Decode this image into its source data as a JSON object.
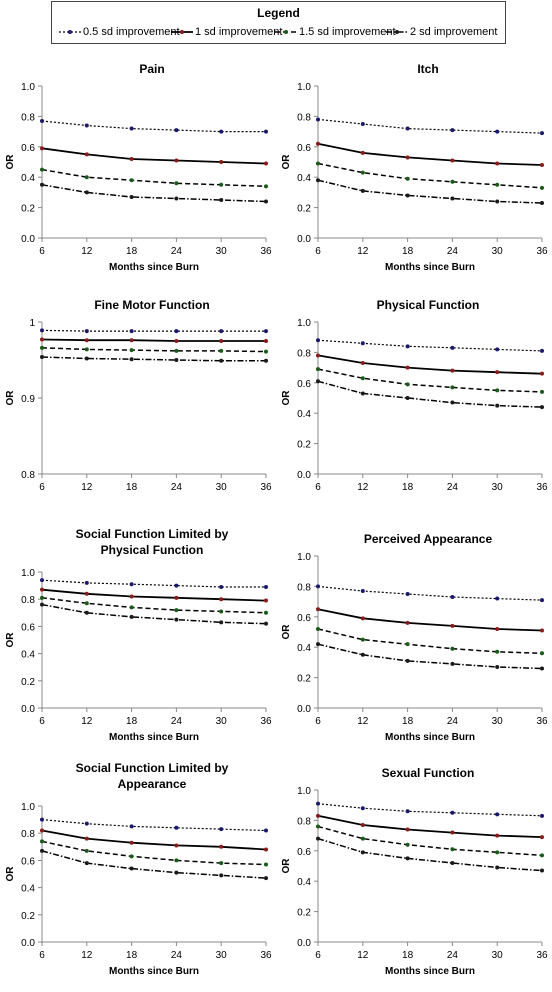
{
  "legend": {
    "title": "Legend",
    "items": [
      {
        "label": "0.5 sd improvement",
        "style": "dotted"
      },
      {
        "label": "1 sd improvement",
        "style": "solid"
      },
      {
        "label": "1.5 sd improvement",
        "style": "dashed"
      },
      {
        "label": "2 sd improvement",
        "style": "dashdot"
      }
    ]
  },
  "colors": {
    "line": "#000000",
    "marker": "#1a1a6b",
    "axis": "#888888",
    "background": "#ffffff"
  },
  "chart_data": [
    {
      "type": "line",
      "title": "Pain",
      "xlabel": "Months since Burn",
      "ylabel": "OR",
      "x": [
        6,
        12,
        18,
        24,
        30,
        36
      ],
      "ylim": [
        0,
        1.0
      ],
      "yticks": [
        "0.0",
        "0.2",
        "0.4",
        "0.6",
        "0.8",
        "1.0"
      ],
      "grid": false,
      "series": [
        {
          "name": "0.5 sd improvement",
          "values": [
            0.77,
            0.74,
            0.72,
            0.71,
            0.7,
            0.7
          ]
        },
        {
          "name": "1 sd improvement",
          "values": [
            0.59,
            0.55,
            0.52,
            0.51,
            0.5,
            0.49
          ]
        },
        {
          "name": "1.5 sd improvement",
          "values": [
            0.45,
            0.4,
            0.38,
            0.36,
            0.35,
            0.34
          ]
        },
        {
          "name": "2 sd improvement",
          "values": [
            0.35,
            0.3,
            0.27,
            0.26,
            0.25,
            0.24
          ]
        }
      ]
    },
    {
      "type": "line",
      "title": "Itch",
      "xlabel": "Months since Burn",
      "ylabel": "OR",
      "x": [
        6,
        12,
        18,
        24,
        30,
        36
      ],
      "ylim": [
        0,
        1.0
      ],
      "yticks": [
        "0.0",
        "0.2",
        "0.4",
        "0.6",
        "0.8",
        "1.0"
      ],
      "grid": false,
      "series": [
        {
          "name": "0.5 sd improvement",
          "values": [
            0.78,
            0.75,
            0.72,
            0.71,
            0.7,
            0.69
          ]
        },
        {
          "name": "1 sd improvement",
          "values": [
            0.62,
            0.56,
            0.53,
            0.51,
            0.49,
            0.48
          ]
        },
        {
          "name": "1.5 sd improvement",
          "values": [
            0.49,
            0.43,
            0.39,
            0.37,
            0.35,
            0.33
          ]
        },
        {
          "name": "2 sd improvement",
          "values": [
            0.38,
            0.31,
            0.28,
            0.26,
            0.24,
            0.23
          ]
        }
      ]
    },
    {
      "type": "line",
      "title": "Fine Motor Function",
      "xlabel": "",
      "ylabel": "OR",
      "x": [
        6,
        12,
        18,
        24,
        30,
        36
      ],
      "ylim": [
        0.8,
        1.0
      ],
      "yticks": [
        "0.8",
        "0.9",
        "1"
      ],
      "grid": false,
      "series": [
        {
          "name": "0.5 sd improvement",
          "values": [
            0.989,
            0.988,
            0.988,
            0.988,
            0.988,
            0.988
          ]
        },
        {
          "name": "1 sd improvement",
          "values": [
            0.977,
            0.976,
            0.976,
            0.975,
            0.975,
            0.975
          ]
        },
        {
          "name": "1.5 sd improvement",
          "values": [
            0.966,
            0.964,
            0.963,
            0.962,
            0.962,
            0.961
          ]
        },
        {
          "name": "2 sd improvement",
          "values": [
            0.954,
            0.952,
            0.951,
            0.95,
            0.949,
            0.949
          ]
        }
      ]
    },
    {
      "type": "line",
      "title": "Physical Function",
      "xlabel": "",
      "ylabel": "OR",
      "x": [
        6,
        12,
        18,
        24,
        30,
        36
      ],
      "ylim": [
        0,
        1.0
      ],
      "yticks": [
        "0.0",
        "0.2",
        "0.4",
        "0.6",
        "0.8",
        "1.0"
      ],
      "grid": false,
      "series": [
        {
          "name": "0.5 sd improvement",
          "values": [
            0.88,
            0.86,
            0.84,
            0.83,
            0.82,
            0.81
          ]
        },
        {
          "name": "1 sd improvement",
          "values": [
            0.78,
            0.73,
            0.7,
            0.68,
            0.67,
            0.66
          ]
        },
        {
          "name": "1.5 sd improvement",
          "values": [
            0.69,
            0.63,
            0.59,
            0.57,
            0.55,
            0.54
          ]
        },
        {
          "name": "2 sd improvement",
          "values": [
            0.61,
            0.53,
            0.5,
            0.47,
            0.45,
            0.44
          ]
        }
      ]
    },
    {
      "type": "line",
      "title": "Social Function Limited by Physical Function",
      "xlabel": "Months since Burn",
      "ylabel": "OR",
      "x": [
        6,
        12,
        18,
        24,
        30,
        36
      ],
      "ylim": [
        0,
        1.0
      ],
      "yticks": [
        "0.0",
        "0.2",
        "0.4",
        "0.6",
        "0.8",
        "1.0"
      ],
      "grid": false,
      "series": [
        {
          "name": "0.5 sd improvement",
          "values": [
            0.94,
            0.92,
            0.91,
            0.9,
            0.89,
            0.89
          ]
        },
        {
          "name": "1 sd improvement",
          "values": [
            0.87,
            0.84,
            0.82,
            0.81,
            0.8,
            0.79
          ]
        },
        {
          "name": "1.5 sd improvement",
          "values": [
            0.81,
            0.77,
            0.74,
            0.72,
            0.71,
            0.7
          ]
        },
        {
          "name": "2 sd improvement",
          "values": [
            0.76,
            0.7,
            0.67,
            0.65,
            0.63,
            0.62
          ]
        }
      ]
    },
    {
      "type": "line",
      "title": "Perceived Appearance",
      "xlabel": "Months since Burn",
      "ylabel": "OR",
      "x": [
        6,
        12,
        18,
        24,
        30,
        36
      ],
      "ylim": [
        0,
        1.0
      ],
      "yticks": [
        "0.0",
        "0.2",
        "0.4",
        "0.6",
        "0.8",
        "1.0"
      ],
      "grid": false,
      "series": [
        {
          "name": "0.5 sd improvement",
          "values": [
            0.8,
            0.77,
            0.75,
            0.73,
            0.72,
            0.71
          ]
        },
        {
          "name": "1 sd improvement",
          "values": [
            0.65,
            0.59,
            0.56,
            0.54,
            0.52,
            0.51
          ]
        },
        {
          "name": "1.5 sd improvement",
          "values": [
            0.52,
            0.45,
            0.42,
            0.39,
            0.37,
            0.36
          ]
        },
        {
          "name": "2 sd improvement",
          "values": [
            0.42,
            0.35,
            0.31,
            0.29,
            0.27,
            0.26
          ]
        }
      ]
    },
    {
      "type": "line",
      "title": "Social Function Limited by Appearance",
      "xlabel": "Months since Burn",
      "ylabel": "OR",
      "x": [
        6,
        12,
        18,
        24,
        30,
        36
      ],
      "ylim": [
        0,
        1.0
      ],
      "yticks": [
        "0.0",
        "0.2",
        "0.4",
        "0.6",
        "0.8",
        "1.0"
      ],
      "grid": false,
      "series": [
        {
          "name": "0.5 sd improvement",
          "values": [
            0.9,
            0.87,
            0.85,
            0.84,
            0.83,
            0.82
          ]
        },
        {
          "name": "1 sd improvement",
          "values": [
            0.82,
            0.76,
            0.73,
            0.71,
            0.7,
            0.68
          ]
        },
        {
          "name": "1.5 sd improvement",
          "values": [
            0.74,
            0.67,
            0.63,
            0.6,
            0.58,
            0.57
          ]
        },
        {
          "name": "2 sd improvement",
          "values": [
            0.67,
            0.58,
            0.54,
            0.51,
            0.49,
            0.47
          ]
        }
      ]
    },
    {
      "type": "line",
      "title": "Sexual Function",
      "xlabel": "Months since Burn",
      "ylabel": "OR",
      "x": [
        6,
        12,
        18,
        24,
        30,
        36
      ],
      "ylim": [
        0,
        1.0
      ],
      "yticks": [
        "0.0",
        "0.2",
        "0.4",
        "0.6",
        "0.8",
        "1.0"
      ],
      "grid": false,
      "series": [
        {
          "name": "0.5 sd improvement",
          "values": [
            0.91,
            0.88,
            0.86,
            0.85,
            0.84,
            0.83
          ]
        },
        {
          "name": "1 sd improvement",
          "values": [
            0.83,
            0.77,
            0.74,
            0.72,
            0.7,
            0.69
          ]
        },
        {
          "name": "1.5 sd improvement",
          "values": [
            0.76,
            0.68,
            0.64,
            0.61,
            0.59,
            0.57
          ]
        },
        {
          "name": "2 sd improvement",
          "values": [
            0.68,
            0.59,
            0.55,
            0.52,
            0.49,
            0.47
          ]
        }
      ]
    }
  ]
}
